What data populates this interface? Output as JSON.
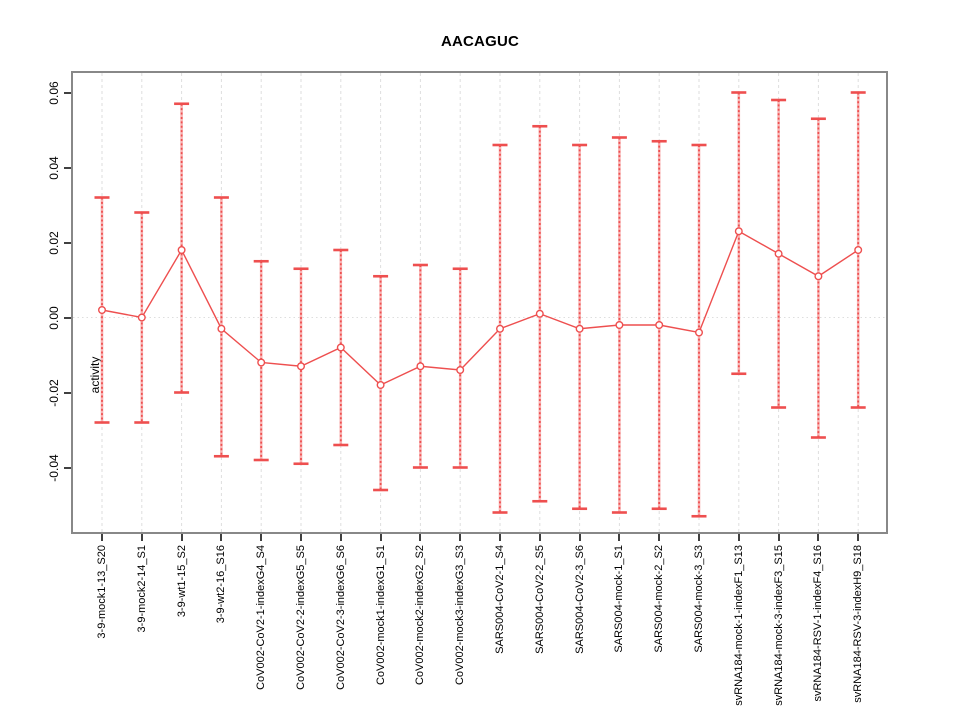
{
  "title": "AACAGUC",
  "y_axis": {
    "label": "activity",
    "tick_labels": [
      "0.06",
      "0.04",
      "0.02",
      "0.00",
      "-0.02",
      "-0.04"
    ],
    "tick_values": [
      0.06,
      0.04,
      0.02,
      0.0,
      -0.02,
      -0.04
    ]
  },
  "colors": {
    "point_line_red": "#ee4f4f",
    "errorbar_light_red": "#f8b4b4",
    "grid_gray": "#dedede",
    "axis_box_gray": "#888888",
    "tick_dark": "#404040",
    "text": "#000000",
    "background": "#ffffff"
  },
  "chart_data": {
    "type": "line",
    "title": "AACAGUC",
    "xlabel": "",
    "ylabel": "activity",
    "ylim": [
      -0.057,
      0.065
    ],
    "grid": "vertical dashed gridline at every category; dotted horizontal line at y=0 only",
    "legend": "none",
    "marker": "open-circle",
    "error_bars": true,
    "categories": [
      "3-9-mock1-13_S20",
      "3-9-mock2-14_S1",
      "3-9-wt1-15_S2",
      "3-9-wt2-16_S16",
      "CoV002-CoV2-1-indexG4_S4",
      "CoV002-CoV2-2-indexG5_S5",
      "CoV002-CoV2-3-indexG6_S6",
      "CoV002-mock1-indexG1_S1",
      "CoV002-mock2-indexG2_S2",
      "CoV002-mock3-indexG3_S3",
      "SARS004-CoV2-1_S4",
      "SARS004-CoV2-2_S5",
      "SARS004-CoV2-3_S6",
      "SARS004-mock-1_S1",
      "SARS004-mock-2_S2",
      "SARS004-mock-3_S3",
      "svRNA184-mock-1-indexF1_S13",
      "svRNA184-mock-3-indexF3_S15",
      "svRNA184-RSV-1-indexF4_S16",
      "svRNA184-RSV-3-indexH9_S18"
    ],
    "series": [
      {
        "name": "activity",
        "values": [
          0.002,
          0.0,
          0.018,
          -0.003,
          -0.012,
          -0.013,
          -0.008,
          -0.018,
          -0.013,
          -0.014,
          -0.003,
          0.001,
          -0.003,
          -0.002,
          -0.002,
          -0.004,
          0.023,
          0.017,
          0.011,
          0.018
        ],
        "ci_low": [
          -0.028,
          -0.028,
          -0.02,
          -0.037,
          -0.038,
          -0.039,
          -0.034,
          -0.046,
          -0.04,
          -0.04,
          -0.052,
          -0.049,
          -0.051,
          -0.052,
          -0.051,
          -0.053,
          -0.015,
          -0.024,
          -0.032,
          -0.024
        ],
        "ci_high": [
          0.032,
          0.028,
          0.057,
          0.032,
          0.015,
          0.013,
          0.018,
          0.011,
          0.014,
          0.013,
          0.046,
          0.051,
          0.046,
          0.048,
          0.047,
          0.046,
          0.06,
          0.058,
          0.053,
          0.06
        ]
      }
    ]
  }
}
